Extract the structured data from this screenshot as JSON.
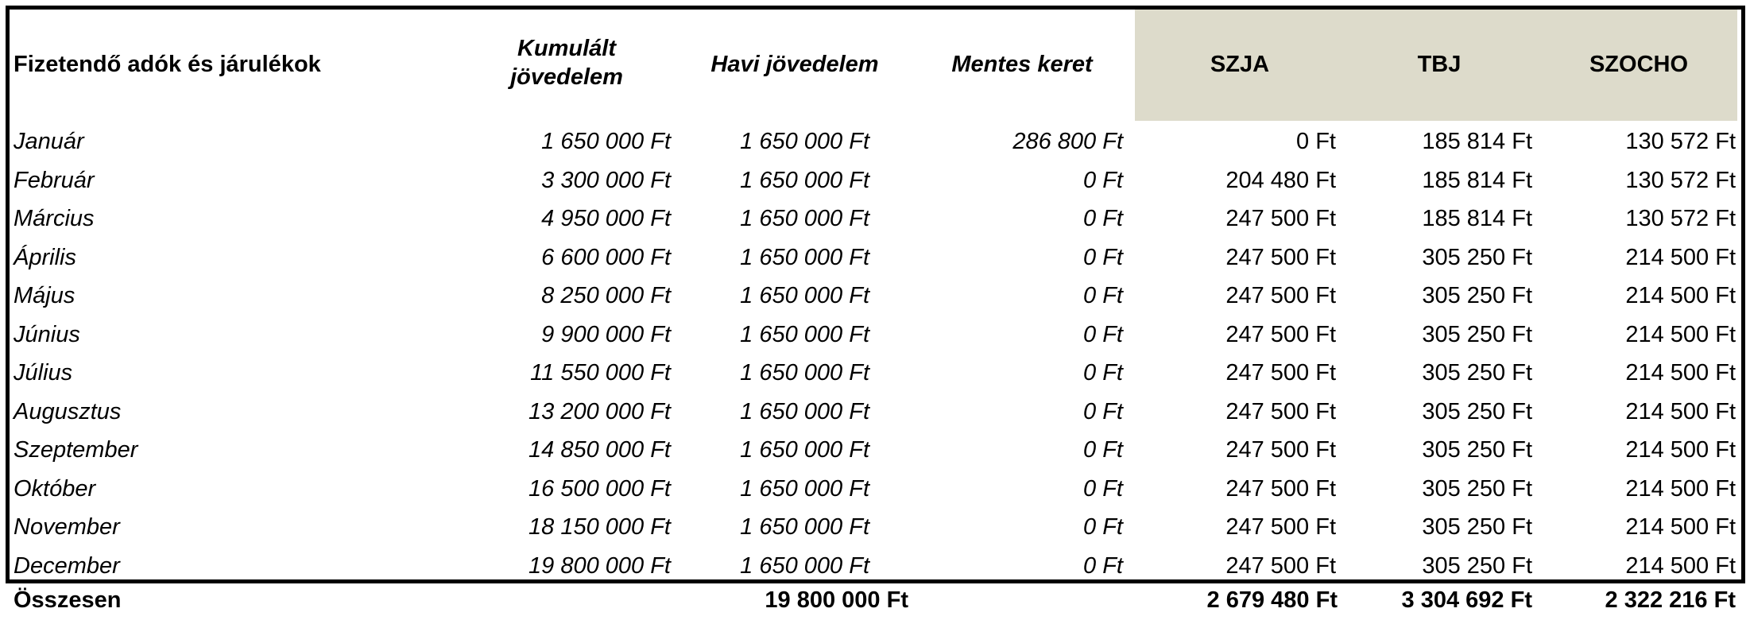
{
  "table": {
    "headers": [
      "Fizetendő adók és járulékok",
      "Kumulált jövedelem",
      "Havi jövedelem",
      "Mentes keret",
      "SZJA",
      "TBJ",
      "SZOCHO"
    ],
    "rows": [
      [
        "Január",
        "1 650 000 Ft",
        "1 650 000 Ft",
        "286 800 Ft",
        "0 Ft",
        "185 814 Ft",
        "130 572 Ft"
      ],
      [
        "Február",
        "3 300 000 Ft",
        "1 650 000 Ft",
        "0 Ft",
        "204 480 Ft",
        "185 814 Ft",
        "130 572 Ft"
      ],
      [
        "Március",
        "4 950 000 Ft",
        "1 650 000 Ft",
        "0 Ft",
        "247 500 Ft",
        "185 814 Ft",
        "130 572 Ft"
      ],
      [
        "Április",
        "6 600 000 Ft",
        "1 650 000 Ft",
        "0 Ft",
        "247 500 Ft",
        "305 250 Ft",
        "214 500 Ft"
      ],
      [
        "Május",
        "8 250 000 Ft",
        "1 650 000 Ft",
        "0 Ft",
        "247 500 Ft",
        "305 250 Ft",
        "214 500 Ft"
      ],
      [
        "Június",
        "9 900 000 Ft",
        "1 650 000 Ft",
        "0 Ft",
        "247 500 Ft",
        "305 250 Ft",
        "214 500 Ft"
      ],
      [
        "Július",
        "11 550 000 Ft",
        "1 650 000 Ft",
        "0 Ft",
        "247 500 Ft",
        "305 250 Ft",
        "214 500 Ft"
      ],
      [
        "Augusztus",
        "13 200 000 Ft",
        "1 650 000 Ft",
        "0 Ft",
        "247 500 Ft",
        "305 250 Ft",
        "214 500 Ft"
      ],
      [
        "Szeptember",
        "14 850 000 Ft",
        "1 650 000 Ft",
        "0 Ft",
        "247 500 Ft",
        "305 250 Ft",
        "214 500 Ft"
      ],
      [
        "Október",
        "16 500 000 Ft",
        "1 650 000 Ft",
        "0 Ft",
        "247 500 Ft",
        "305 250 Ft",
        "214 500 Ft"
      ],
      [
        "November",
        "18 150 000 Ft",
        "1 650 000 Ft",
        "0 Ft",
        "247 500 Ft",
        "305 250 Ft",
        "214 500 Ft"
      ],
      [
        "December",
        "19 800 000 Ft",
        "1 650 000 Ft",
        "0 Ft",
        "247 500 Ft",
        "305 250 Ft",
        "214 500 Ft"
      ]
    ],
    "totals": {
      "label": "Összesen",
      "havi": "19 800 000 Ft",
      "szja": "2 679 480 Ft",
      "tbj": "3 304 692 Ft",
      "szocho": "2 322 216 Ft"
    }
  }
}
